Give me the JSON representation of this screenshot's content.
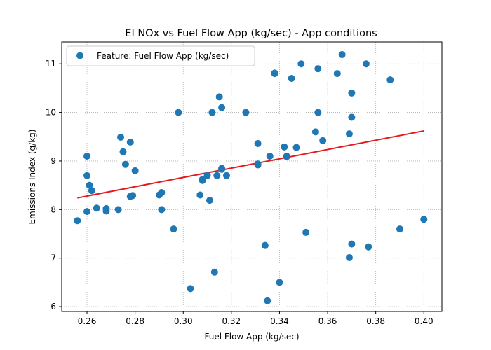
{
  "chart_data": {
    "type": "scatter",
    "title": "EI NOx vs Fuel Flow App (kg/sec) - App conditions",
    "xlabel": "Fuel Flow App (kg/sec)",
    "ylabel": "Emissions Index (g/kg)",
    "xlim": [
      0.2495,
      0.4075
    ],
    "ylim": [
      5.9,
      11.45
    ],
    "xticks": [
      0.26,
      0.28,
      0.3,
      0.32,
      0.34,
      0.36,
      0.38,
      0.4
    ],
    "xtick_labels": [
      "0.26",
      "0.28",
      "0.30",
      "0.32",
      "0.34",
      "0.36",
      "0.38",
      "0.40"
    ],
    "yticks": [
      6,
      7,
      8,
      9,
      10,
      11
    ],
    "ytick_labels": [
      "6",
      "7",
      "8",
      "9",
      "10",
      "11"
    ],
    "grid": true,
    "legend_position": "top-left",
    "series": [
      {
        "name": "Feature: Fuel Flow App (kg/sec)",
        "color": "#1f77b4",
        "points": [
          [
            0.256,
            7.77
          ],
          [
            0.26,
            9.1
          ],
          [
            0.26,
            8.7
          ],
          [
            0.261,
            8.5
          ],
          [
            0.262,
            8.39
          ],
          [
            0.26,
            7.96
          ],
          [
            0.264,
            8.03
          ],
          [
            0.268,
            8.02
          ],
          [
            0.268,
            7.97
          ],
          [
            0.273,
            8.0
          ],
          [
            0.274,
            9.49
          ],
          [
            0.275,
            9.19
          ],
          [
            0.276,
            8.93
          ],
          [
            0.278,
            9.39
          ],
          [
            0.278,
            8.27
          ],
          [
            0.279,
            8.29
          ],
          [
            0.28,
            8.8
          ],
          [
            0.29,
            8.3
          ],
          [
            0.291,
            8.35
          ],
          [
            0.291,
            8.0
          ],
          [
            0.296,
            7.6
          ],
          [
            0.298,
            10.0
          ],
          [
            0.303,
            6.37
          ],
          [
            0.307,
            8.3
          ],
          [
            0.308,
            8.6
          ],
          [
            0.308,
            8.62
          ],
          [
            0.31,
            8.7
          ],
          [
            0.311,
            8.19
          ],
          [
            0.312,
            10.0
          ],
          [
            0.313,
            6.71
          ],
          [
            0.314,
            8.7
          ],
          [
            0.315,
            10.32
          ],
          [
            0.316,
            10.1
          ],
          [
            0.316,
            8.83
          ],
          [
            0.316,
            8.85
          ],
          [
            0.318,
            8.7
          ],
          [
            0.326,
            10.0
          ],
          [
            0.331,
            9.36
          ],
          [
            0.331,
            8.92
          ],
          [
            0.331,
            8.94
          ],
          [
            0.334,
            7.26
          ],
          [
            0.335,
            6.12
          ],
          [
            0.336,
            9.1
          ],
          [
            0.338,
            10.8
          ],
          [
            0.338,
            10.81
          ],
          [
            0.34,
            6.5
          ],
          [
            0.342,
            9.29
          ],
          [
            0.343,
            9.09
          ],
          [
            0.343,
            9.1
          ],
          [
            0.345,
            10.7
          ],
          [
            0.347,
            9.28
          ],
          [
            0.349,
            11.0
          ],
          [
            0.351,
            7.53
          ],
          [
            0.355,
            9.6
          ],
          [
            0.356,
            10.9
          ],
          [
            0.356,
            10.0
          ],
          [
            0.358,
            9.42
          ],
          [
            0.364,
            10.8
          ],
          [
            0.366,
            11.19
          ],
          [
            0.369,
            9.56
          ],
          [
            0.369,
            7.01
          ],
          [
            0.37,
            10.4
          ],
          [
            0.37,
            9.9
          ],
          [
            0.37,
            7.29
          ],
          [
            0.376,
            11.0
          ],
          [
            0.377,
            7.23
          ],
          [
            0.386,
            10.67
          ],
          [
            0.39,
            7.6
          ],
          [
            0.4,
            7.8
          ]
        ]
      }
    ],
    "fit_line": {
      "color": "#e41a1c",
      "points": [
        [
          0.256,
          8.24
        ],
        [
          0.4,
          9.62
        ]
      ]
    }
  }
}
